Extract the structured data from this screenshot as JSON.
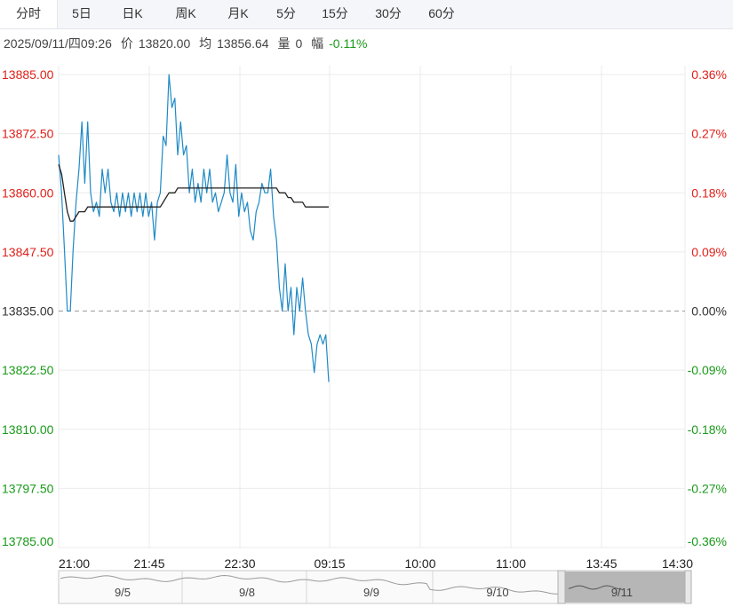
{
  "tabs": [
    {
      "label": "分时",
      "active": true
    },
    {
      "label": "5日",
      "active": false
    },
    {
      "label": "日K",
      "active": false
    },
    {
      "label": "周K",
      "active": false
    },
    {
      "label": "月K",
      "active": false
    },
    {
      "label": "5分",
      "active": false
    },
    {
      "label": "15分",
      "active": false
    },
    {
      "label": "30分",
      "active": false
    },
    {
      "label": "60分",
      "active": false
    }
  ],
  "info": {
    "datetime": "2025/09/11/四09:26",
    "price_label": "价",
    "price": "13820.00",
    "avg_label": "均",
    "avg": "13856.64",
    "volume_label": "量",
    "volume": "0",
    "change_label": "幅",
    "change": "-0.11%"
  },
  "colors": {
    "up": "#e0201a",
    "down": "#1a9a1a",
    "price_line": "#1f8ac6",
    "avg_line": "#222222",
    "grid": "#ebebeb"
  },
  "chart_data": {
    "type": "line",
    "reference_price": 13835.0,
    "ylim": [
      13785.0,
      13885.0
    ],
    "y_ticks": [
      "13885.00",
      "13872.50",
      "13860.00",
      "13847.50",
      "13835.00",
      "13822.50",
      "13810.00",
      "13797.50",
      "13785.00"
    ],
    "right_ticks": [
      "0.36%",
      "0.27%",
      "0.18%",
      "0.09%",
      "0.00%",
      "-0.09%",
      "-0.18%",
      "-0.27%",
      "-0.36%"
    ],
    "x_ticks": [
      "21:00",
      "21:45",
      "22:30",
      "09:15",
      "10:00",
      "11:00",
      "13:45",
      "14:30"
    ],
    "series": [
      {
        "key": "price",
        "values": [
          13868,
          13860,
          13848,
          13835,
          13835,
          13848,
          13858,
          13865,
          13875,
          13862,
          13875,
          13860,
          13856,
          13858,
          13855,
          13865,
          13860,
          13865,
          13858,
          13856,
          13860,
          13855,
          13860,
          13856,
          13860,
          13855,
          13860,
          13856,
          13860,
          13855,
          13860,
          13855,
          13858,
          13850,
          13858,
          13860,
          13872,
          13870,
          13885,
          13878,
          13880,
          13868,
          13875,
          13868,
          13870,
          13860,
          13865,
          13858,
          13862,
          13858,
          13865,
          13860,
          13865,
          13858,
          13860,
          13856,
          13858,
          13860,
          13868,
          13860,
          13858,
          13866,
          13855,
          13860,
          13856,
          13858,
          13852,
          13850,
          13856,
          13858,
          13862,
          13860,
          13860,
          13865,
          13855,
          13850,
          13840,
          13835,
          13845,
          13835,
          13840,
          13830,
          13840,
          13835,
          13842,
          13835,
          13830,
          13828,
          13822,
          13828,
          13830,
          13828,
          13830,
          13820
        ]
      },
      {
        "key": "avg",
        "values": [
          13866,
          13864,
          13860,
          13856,
          13854,
          13854,
          13855,
          13856,
          13856,
          13856,
          13857,
          13857,
          13857,
          13857,
          13857,
          13857,
          13857,
          13857,
          13857,
          13857,
          13857,
          13857,
          13857,
          13857,
          13857,
          13857,
          13857,
          13857,
          13857,
          13857,
          13857,
          13857,
          13857,
          13857,
          13857,
          13857,
          13858,
          13859,
          13860,
          13860,
          13860,
          13861,
          13861,
          13861,
          13861,
          13861,
          13861,
          13861,
          13861,
          13861,
          13861,
          13861,
          13861,
          13861,
          13861,
          13861,
          13861,
          13861,
          13861,
          13861,
          13861,
          13861,
          13861,
          13861,
          13861,
          13861,
          13861,
          13861,
          13861,
          13861,
          13861,
          13861,
          13861,
          13861,
          13861,
          13861,
          13860,
          13860,
          13860,
          13859,
          13859,
          13858,
          13858,
          13858,
          13858,
          13857,
          13857,
          13857,
          13857,
          13857,
          13857,
          13857,
          13857,
          13857
        ]
      }
    ]
  },
  "navigator": {
    "labels": [
      "9/5",
      "9/8",
      "9/9",
      "9/10",
      "9/11"
    ]
  }
}
